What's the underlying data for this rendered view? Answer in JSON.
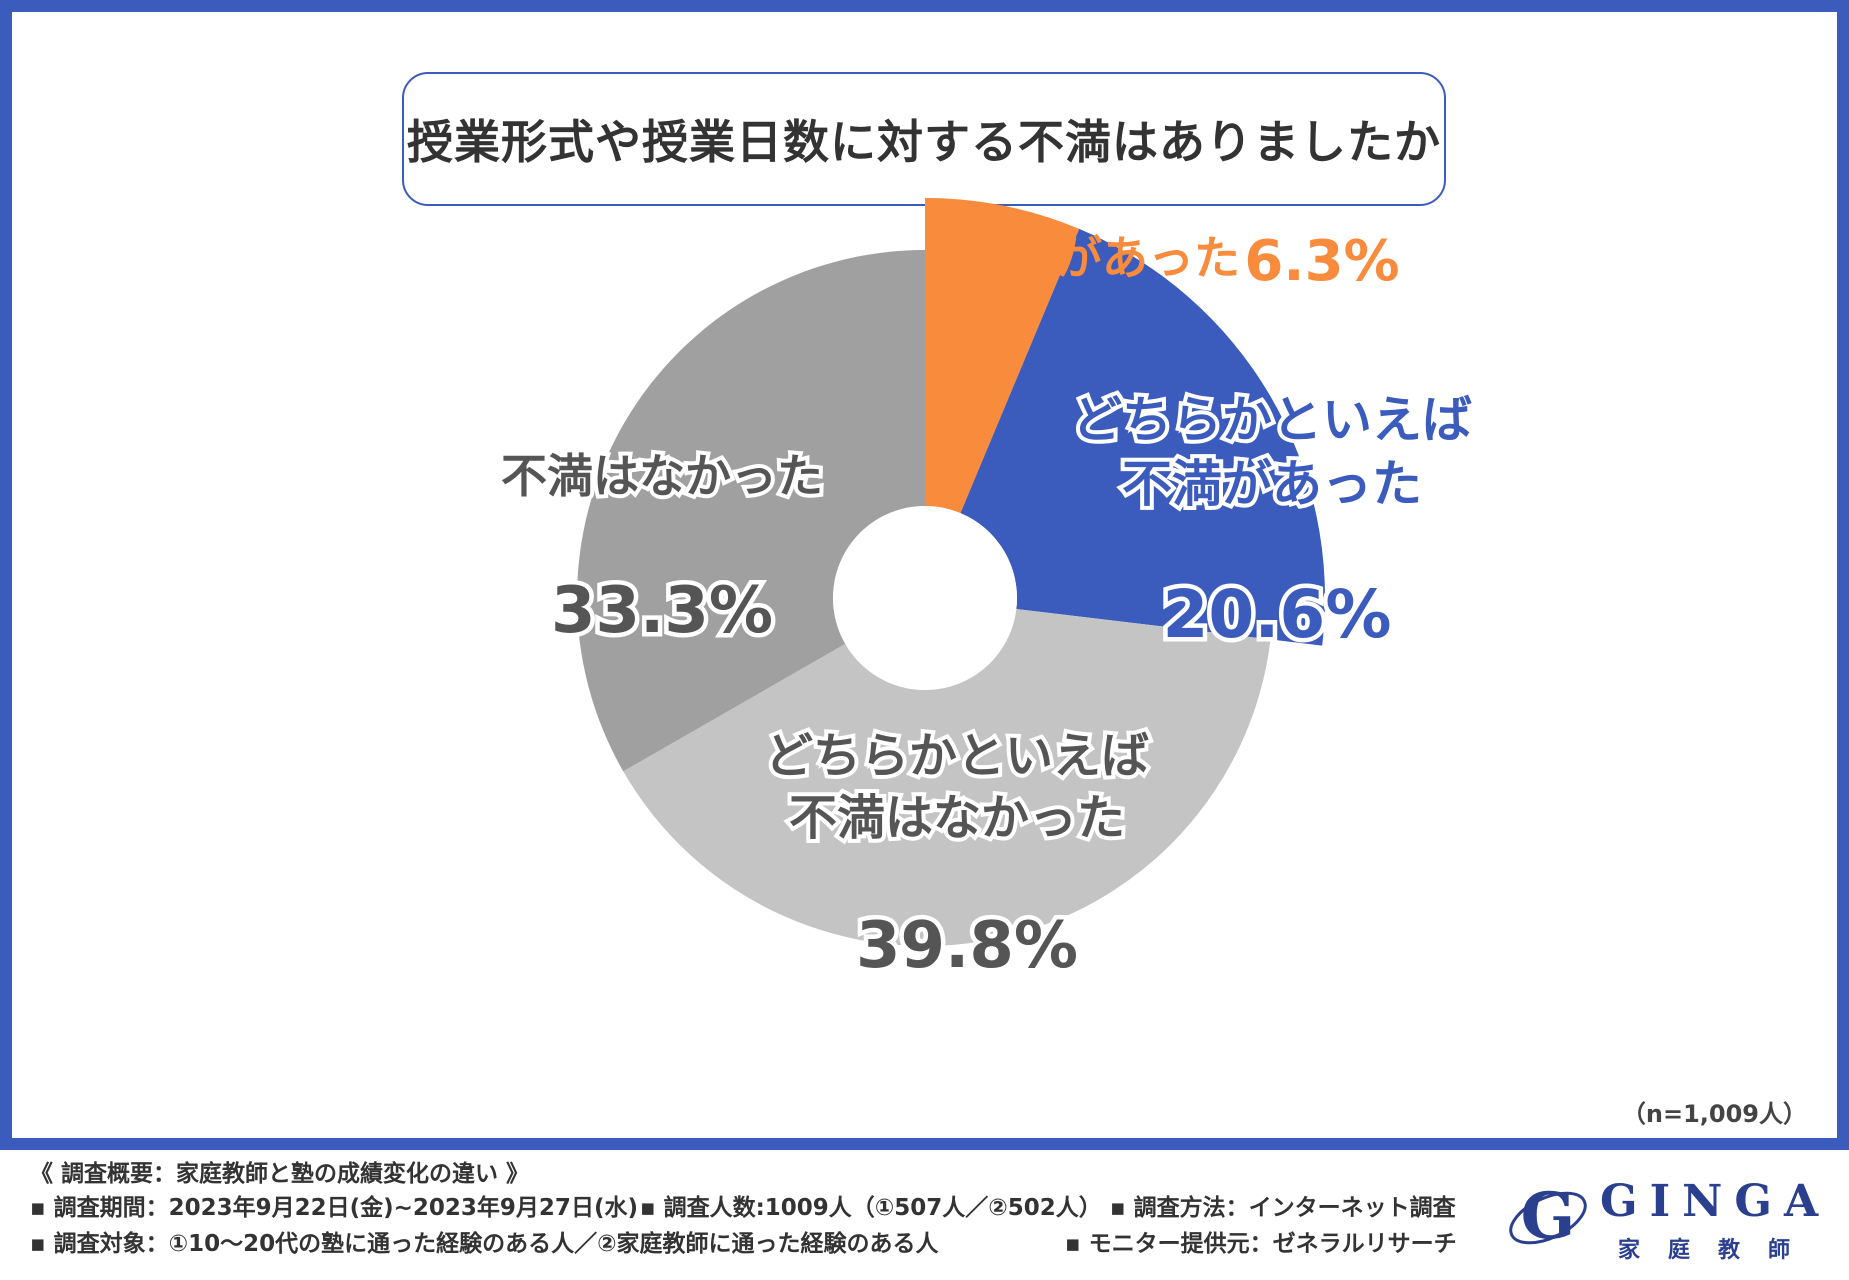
{
  "title": "授業形式や授業日数に対する不満はありましたか",
  "sample_size": "（n=1,009人）",
  "chart_data": {
    "type": "pie",
    "donut": true,
    "title": "授業形式や授業日数に対する不満はありましたか",
    "slices": [
      {
        "label_lines": [
          "不満があった"
        ],
        "value": 6.3,
        "value_label": "6.3%",
        "color": "#f98b3d",
        "label_color": "#f98b3d",
        "exploded": true
      },
      {
        "label_lines": [
          "どちらかといえば",
          "不満があった"
        ],
        "value": 20.6,
        "value_label": "20.6%",
        "color": "#3b5bbd",
        "label_color": "#3b5bbd",
        "exploded": true
      },
      {
        "label_lines": [
          "どちらかといえば",
          "不満はなかった"
        ],
        "value": 39.8,
        "value_label": "39.8%",
        "color": "#c4c4c4",
        "label_color": "#555555",
        "exploded": false
      },
      {
        "label_lines": [
          "不満はなかった"
        ],
        "value": 33.3,
        "value_label": "33.3%",
        "color": "#a0a0a0",
        "label_color": "#555555",
        "exploded": false
      }
    ]
  },
  "footer": {
    "heading": "《 調査概要：家庭教師と塾の成績変化の違い 》",
    "period": "▪ 調査期間：2023年9月22日(金)~2023年9月27日(水)",
    "count": "▪ 調査人数:1009人（①507人／②502人）",
    "method": "▪ 調査方法：インターネット調査",
    "target": "▪ 調査対象：①10〜20代の塾に通った経験のある人／②家庭教師に通った経験のある人",
    "provider": "▪ モニター提供元：ゼネラルリサーチ"
  },
  "logo": {
    "word": "GINGA",
    "sub": "家庭教師",
    "letter": "G"
  }
}
